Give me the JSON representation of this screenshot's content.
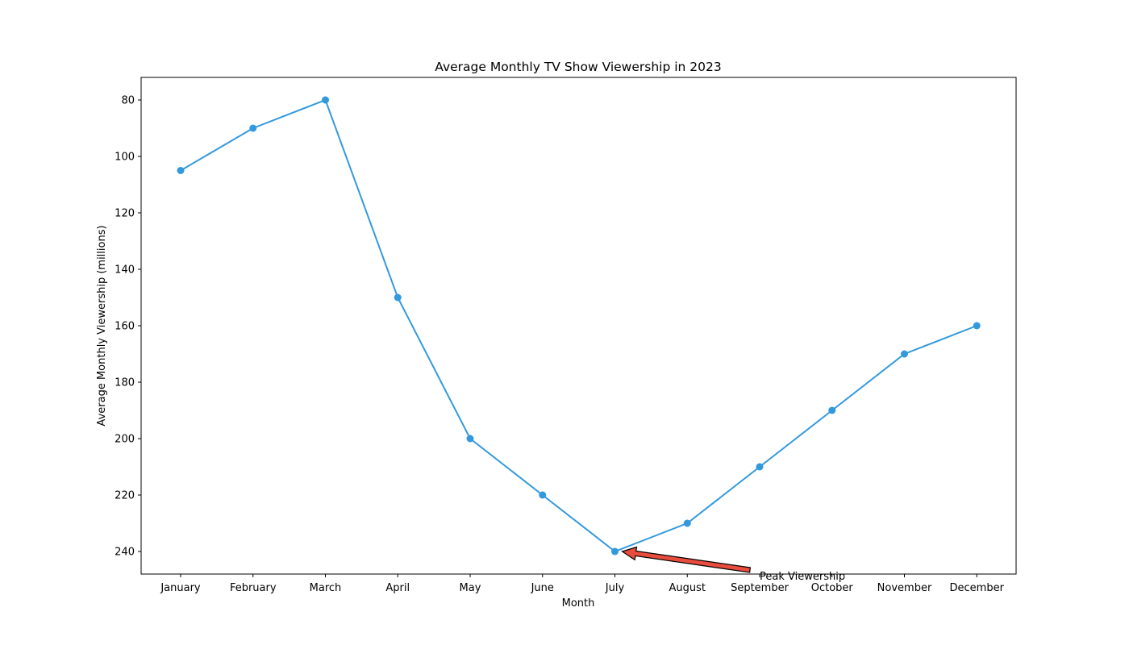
{
  "chart_data": {
    "type": "line",
    "title": "Average Monthly TV Show Viewership in 2023",
    "xlabel": "Month",
    "ylabel": "Average Monthly Viewership (millions)",
    "categories": [
      "January",
      "February",
      "March",
      "April",
      "May",
      "June",
      "July",
      "August",
      "September",
      "October",
      "November",
      "December"
    ],
    "values": [
      105,
      90,
      80,
      150,
      200,
      220,
      240,
      230,
      210,
      190,
      170,
      160
    ],
    "ylim": [
      248,
      72
    ],
    "y_inverted": true,
    "yticks": [
      80,
      100,
      120,
      140,
      160,
      180,
      200,
      220,
      240
    ],
    "grid": false,
    "line_color": "#3399dd",
    "annotation": {
      "text": "Peak Viewership",
      "target_category": "July",
      "target_value": 240,
      "arrow_color": "#e74c3c"
    }
  }
}
